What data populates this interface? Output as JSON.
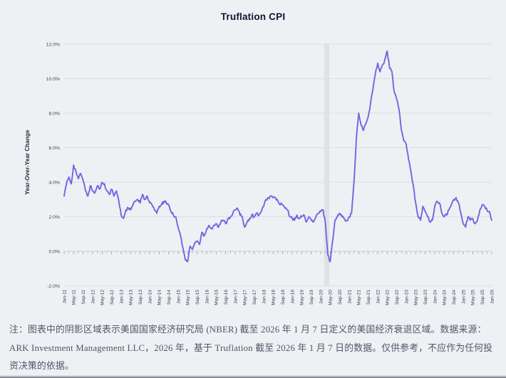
{
  "page": {
    "background": "#eef0f4"
  },
  "chart_data": {
    "type": "line",
    "title": "Truflation CPI",
    "ylabel": "Year-Over-Year Change",
    "xlabel": "",
    "ylim": [
      -2,
      12
    ],
    "y_ticks": [
      -2,
      0,
      2,
      4,
      6,
      8,
      10,
      12
    ],
    "y_tick_labels": [
      "-2.0%",
      "0.0%",
      "2.0%",
      "4.0%",
      "6.0%",
      "8.0%",
      "10.0%",
      "12.0%"
    ],
    "x_start": "Jan-11",
    "x_end": "Jan-26",
    "x_interval": "monthly",
    "x_tick_every_months": 4,
    "x_tick_labels": [
      "Jan-11",
      "May-11",
      "Sep-11",
      "Jan-12",
      "May-12",
      "Sep-12",
      "Jan-13",
      "May-13",
      "Sep-13",
      "Jan-14",
      "May-14",
      "Sep-14",
      "Jan-15",
      "May-15",
      "Sep-15",
      "Jan-16",
      "May-16",
      "Sep-16",
      "Jan-17",
      "May-17",
      "Sep-17",
      "Jan-18",
      "May-18",
      "Sep-18",
      "Jan-19",
      "May-19",
      "Sep-19",
      "Jan-20",
      "May-20",
      "Sep-20",
      "Jan-21",
      "May-21",
      "Sep-21",
      "Jan-22",
      "May-22",
      "Sep-22",
      "Jan-23",
      "May-23",
      "Sep-23",
      "Jan-24",
      "May-24",
      "Sep-24",
      "Jan-25",
      "May-25",
      "Sep-25",
      "Jan-26"
    ],
    "grid": "horizontal",
    "legend": "none",
    "line_color": "#7763e0",
    "recession_band": {
      "definition": "NBER US recession",
      "start": "Feb-20",
      "end": "Apr-20",
      "color": "#dfe1e6"
    },
    "series": [
      {
        "name": "Truflation CPI",
        "values": [
          3.2,
          3.9,
          4.3,
          3.9,
          5.0,
          4.6,
          4.2,
          4.5,
          4.1,
          3.5,
          3.2,
          3.8,
          3.5,
          3.4,
          3.8,
          3.6,
          4.0,
          3.9,
          3.5,
          3.3,
          3.6,
          3.2,
          3.5,
          2.9,
          2.1,
          1.9,
          2.4,
          2.5,
          2.4,
          2.7,
          2.9,
          3.0,
          2.8,
          3.3,
          3.0,
          3.2,
          2.8,
          2.7,
          2.4,
          2.2,
          2.6,
          2.7,
          2.9,
          2.8,
          2.7,
          2.3,
          2.1,
          2.0,
          1.4,
          0.9,
          0.2,
          -0.5,
          -0.6,
          0.3,
          0.1,
          0.5,
          0.6,
          0.4,
          1.1,
          0.9,
          1.3,
          1.5,
          1.3,
          1.5,
          1.6,
          1.4,
          1.7,
          1.8,
          1.6,
          1.9,
          2.0,
          2.2,
          2.4,
          2.5,
          2.1,
          2.0,
          1.4,
          1.7,
          1.9,
          2.1,
          2.0,
          2.2,
          2.1,
          2.3,
          2.6,
          3.0,
          3.1,
          3.2,
          3.1,
          3.1,
          2.9,
          2.7,
          2.7,
          2.5,
          2.4,
          2.0,
          1.9,
          1.8,
          2.1,
          1.9,
          2.0,
          2.1,
          1.7,
          2.0,
          1.8,
          1.7,
          2.0,
          2.2,
          2.3,
          2.4,
          1.6,
          -0.2,
          -0.6,
          0.6,
          1.8,
          2.0,
          2.2,
          2.0,
          1.9,
          1.8,
          2.0,
          2.2,
          4.0,
          6.5,
          8.0,
          7.3,
          7.0,
          7.4,
          7.8,
          8.6,
          9.4,
          10.3,
          10.9,
          10.4,
          10.8,
          11.1,
          11.6,
          10.6,
          10.4,
          9.2,
          8.8,
          8.2,
          7.0,
          6.4,
          6.2,
          5.3,
          4.6,
          3.8,
          2.8,
          2.0,
          1.8,
          2.6,
          2.3,
          2.0,
          1.7,
          1.8,
          2.6,
          2.9,
          2.8,
          2.2,
          2.0,
          2.1,
          2.4,
          2.7,
          3.0,
          3.1,
          2.8,
          2.2,
          1.6,
          1.4,
          2.0,
          1.8,
          1.9,
          1.6,
          1.8,
          2.4,
          2.7,
          2.6,
          2.4,
          2.3,
          1.8
        ]
      }
    ]
  },
  "footer": {
    "note": "注：图表中的阴影区域表示美国国家经济研究局 (NBER) 截至 2026 年 1 月 7 日定义的美国经济衰退区域。数据来源：ARK Investment Management LLC，2026 年，基于 Truflation 截至 2026 年 1 月 7 日的数据。仅供参考，不应作为任何投资决策的依据。"
  }
}
